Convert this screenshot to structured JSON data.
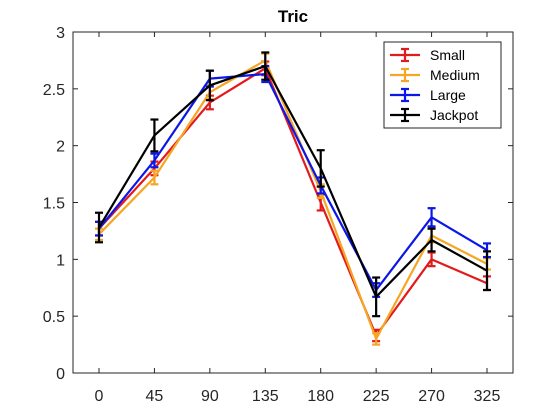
{
  "chart_data": {
    "type": "line",
    "title": "Tric",
    "xlabel": "",
    "ylabel": "",
    "categories": [
      "0",
      "45",
      "90",
      "135",
      "180",
      "225",
      "270",
      "325"
    ],
    "ylim": [
      0,
      3
    ],
    "yticks": [
      "0",
      "0.5",
      "1",
      "1.5",
      "2",
      "2.5",
      "3"
    ],
    "grid": false,
    "legend_position": "top-right",
    "error_bars": true,
    "series": [
      {
        "name": "Small",
        "color": "#e31a1c",
        "values": [
          1.27,
          1.8,
          2.38,
          2.68,
          1.5,
          0.33,
          1.0,
          0.79
        ],
        "errors": [
          0.06,
          0.06,
          0.06,
          0.06,
          0.07,
          0.05,
          0.06,
          0.06
        ]
      },
      {
        "name": "Medium",
        "color": "#f5a623",
        "values": [
          1.22,
          1.72,
          2.47,
          2.75,
          1.6,
          0.3,
          1.21,
          0.96
        ],
        "errors": [
          0.05,
          0.06,
          0.06,
          0.06,
          0.06,
          0.05,
          0.06,
          0.05
        ]
      },
      {
        "name": "Large",
        "color": "#0b17e8",
        "values": [
          1.27,
          1.87,
          2.59,
          2.63,
          1.65,
          0.73,
          1.37,
          1.08
        ],
        "errors": [
          0.06,
          0.06,
          0.07,
          0.07,
          0.07,
          0.06,
          0.08,
          0.06
        ]
      },
      {
        "name": "Jackpot",
        "color": "#000000",
        "values": [
          1.28,
          2.09,
          2.53,
          2.7,
          1.8,
          0.67,
          1.17,
          0.9
        ],
        "errors": [
          0.13,
          0.14,
          0.13,
          0.12,
          0.16,
          0.17,
          0.1,
          0.17
        ]
      }
    ]
  }
}
